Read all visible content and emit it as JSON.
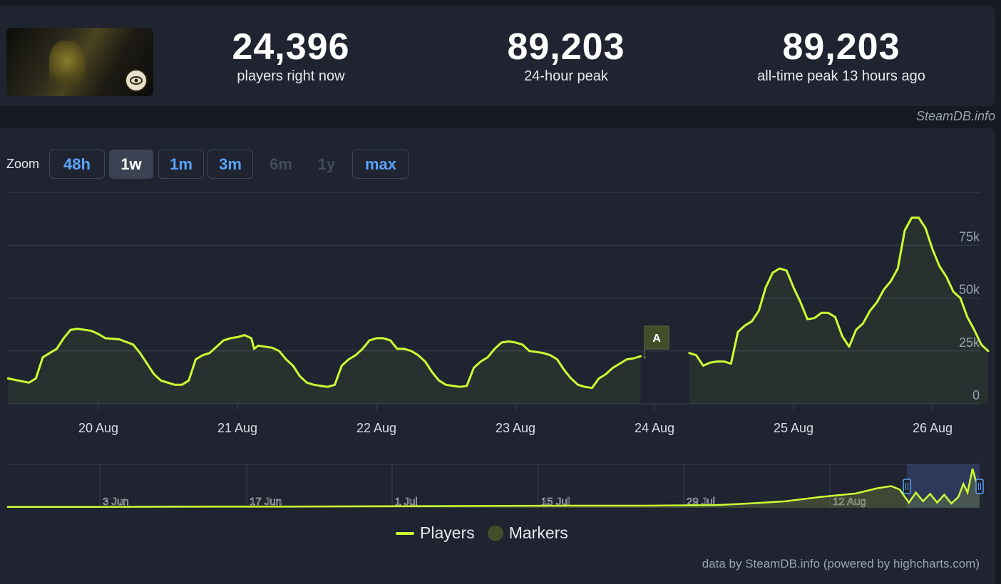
{
  "stats": {
    "current": {
      "value": "24,396",
      "label": "players right now"
    },
    "peak24": {
      "value": "89,203",
      "label": "24-hour peak"
    },
    "alltime": {
      "value": "89,203",
      "label": "all-time peak 13 hours ago"
    }
  },
  "credit_top": "SteamDB.info",
  "zoom": {
    "label": "Zoom",
    "buttons": [
      {
        "label": "48h",
        "state": "enabled"
      },
      {
        "label": "1w",
        "state": "active"
      },
      {
        "label": "1m",
        "state": "enabled"
      },
      {
        "label": "3m",
        "state": "enabled"
      },
      {
        "label": "6m",
        "state": "disabled"
      },
      {
        "label": "1y",
        "state": "disabled"
      },
      {
        "label": "max",
        "state": "enabled"
      }
    ]
  },
  "legend": {
    "players": "Players",
    "markers": "Markers"
  },
  "credit_bottom": "data by SteamDB.info (powered by highcharts.com)",
  "colors": {
    "line": "#ccff33",
    "marker": "#424d2a",
    "grid": "#3a4150",
    "navigator_window": "#3d4880"
  },
  "chart_data": {
    "type": "line",
    "ylim": [
      0,
      100000
    ],
    "yticks": [
      0,
      25000,
      50000,
      75000
    ],
    "ytick_labels": [
      "0",
      "25k",
      "50k",
      "75k"
    ],
    "xlim": [
      19.35,
      26.3
    ],
    "xticks": [
      20,
      21,
      22,
      23,
      24,
      25,
      26
    ],
    "xtick_labels": [
      "20 Aug",
      "21 Aug",
      "22 Aug",
      "23 Aug",
      "24 Aug",
      "25 Aug",
      "26 Aug"
    ],
    "series": [
      {
        "name": "Players",
        "segments": [
          [
            [
              19.35,
              12000
            ],
            [
              19.5,
              10000
            ],
            [
              19.55,
              12000
            ],
            [
              19.6,
              22000
            ],
            [
              19.65,
              24000
            ],
            [
              19.7,
              26000
            ],
            [
              19.75,
              31000
            ],
            [
              19.8,
              35000
            ],
            [
              19.85,
              35500
            ],
            [
              19.95,
              34500
            ],
            [
              20.0,
              33000
            ],
            [
              20.05,
              31000
            ],
            [
              20.15,
              30500
            ],
            [
              20.25,
              28000
            ],
            [
              20.3,
              24000
            ],
            [
              20.35,
              19000
            ],
            [
              20.4,
              14000
            ],
            [
              20.45,
              11000
            ],
            [
              20.5,
              10000
            ],
            [
              20.55,
              9000
            ],
            [
              20.6,
              9000
            ],
            [
              20.65,
              11000
            ],
            [
              20.7,
              21000
            ],
            [
              20.75,
              23000
            ],
            [
              20.8,
              24000
            ],
            [
              20.85,
              27000
            ],
            [
              20.9,
              30000
            ],
            [
              20.95,
              31000
            ],
            [
              21.0,
              31500
            ],
            [
              21.05,
              32500
            ],
            [
              21.1,
              31000
            ],
            [
              21.12,
              26000
            ],
            [
              21.15,
              27500
            ],
            [
              21.2,
              27000
            ],
            [
              21.25,
              26500
            ],
            [
              21.3,
              25000
            ],
            [
              21.35,
              21000
            ],
            [
              21.4,
              18000
            ],
            [
              21.45,
              13000
            ],
            [
              21.5,
              10000
            ],
            [
              21.55,
              9000
            ],
            [
              21.6,
              8500
            ],
            [
              21.65,
              8000
            ],
            [
              21.7,
              9000
            ],
            [
              21.75,
              18000
            ],
            [
              21.8,
              21000
            ],
            [
              21.85,
              23000
            ],
            [
              21.9,
              26000
            ],
            [
              21.95,
              30000
            ],
            [
              22.0,
              31000
            ],
            [
              22.05,
              31000
            ],
            [
              22.1,
              30000
            ],
            [
              22.15,
              26000
            ],
            [
              22.2,
              26000
            ],
            [
              22.25,
              25000
            ],
            [
              22.3,
              23000
            ],
            [
              22.35,
              20000
            ],
            [
              22.4,
              15000
            ],
            [
              22.45,
              11000
            ],
            [
              22.5,
              9000
            ],
            [
              22.55,
              8500
            ],
            [
              22.6,
              8000
            ],
            [
              22.65,
              8500
            ],
            [
              22.7,
              17000
            ],
            [
              22.75,
              20000
            ],
            [
              22.8,
              22000
            ],
            [
              22.85,
              26000
            ],
            [
              22.9,
              29000
            ],
            [
              22.95,
              29500
            ],
            [
              23.0,
              29000
            ],
            [
              23.05,
              28000
            ],
            [
              23.1,
              25000
            ],
            [
              23.15,
              24500
            ],
            [
              23.2,
              24000
            ],
            [
              23.25,
              23000
            ],
            [
              23.3,
              21000
            ],
            [
              23.35,
              16000
            ],
            [
              23.4,
              12000
            ],
            [
              23.45,
              9000
            ],
            [
              23.5,
              8000
            ],
            [
              23.55,
              7500
            ],
            [
              23.6,
              12000
            ],
            [
              23.65,
              14000
            ],
            [
              23.7,
              17000
            ],
            [
              23.75,
              19000
            ],
            [
              23.8,
              21000
            ],
            [
              23.85,
              21500
            ],
            [
              23.9,
              22500
            ]
          ],
          [
            [
              24.25,
              24000
            ],
            [
              24.3,
              23000
            ],
            [
              24.35,
              18000
            ],
            [
              24.4,
              19500
            ],
            [
              24.45,
              20000
            ],
            [
              24.5,
              20000
            ],
            [
              24.55,
              19000
            ],
            [
              24.6,
              34000
            ],
            [
              24.65,
              37000
            ],
            [
              24.7,
              39000
            ],
            [
              24.75,
              44000
            ],
            [
              24.8,
              55000
            ],
            [
              24.85,
              62000
            ],
            [
              24.9,
              64000
            ],
            [
              24.95,
              63000
            ],
            [
              25.0,
              55000
            ],
            [
              25.05,
              48000
            ],
            [
              25.1,
              40000
            ],
            [
              25.15,
              40500
            ],
            [
              25.2,
              43000
            ],
            [
              25.25,
              43000
            ],
            [
              25.3,
              41000
            ],
            [
              25.35,
              32000
            ],
            [
              25.4,
              27000
            ],
            [
              25.45,
              35000
            ],
            [
              25.5,
              38000
            ],
            [
              25.55,
              44000
            ],
            [
              25.6,
              48000
            ],
            [
              25.65,
              54000
            ],
            [
              25.7,
              58000
            ],
            [
              25.75,
              64000
            ],
            [
              25.8,
              82000
            ],
            [
              25.85,
              88000
            ],
            [
              25.9,
              88000
            ],
            [
              25.95,
              83000
            ],
            [
              26.0,
              73000
            ],
            [
              26.05,
              65000
            ],
            [
              26.1,
              60000
            ],
            [
              26.15,
              53000
            ],
            [
              26.2,
              50000
            ],
            [
              26.25,
              41000
            ],
            [
              26.3,
              35000
            ],
            [
              26.35,
              28000
            ],
            [
              26.4,
              25000
            ]
          ]
        ]
      }
    ],
    "markers": [
      {
        "x": 24.0,
        "label": "A"
      }
    ],
    "navigator": {
      "xtick_labels": [
        "3 Jun",
        "17 Jun",
        "1 Jul",
        "15 Jul",
        "29 Jul",
        "12 Aug"
      ],
      "values": [
        [
          0,
          0.02
        ],
        [
          100,
          0.02
        ],
        [
          200,
          0.025
        ],
        [
          300,
          0.03
        ],
        [
          400,
          0.03
        ],
        [
          500,
          0.035
        ],
        [
          600,
          0.04
        ],
        [
          700,
          0.045
        ],
        [
          800,
          0.05
        ],
        [
          900,
          0.05
        ],
        [
          1000,
          0.06
        ],
        [
          1050,
          0.1
        ],
        [
          1100,
          0.15
        ],
        [
          1150,
          0.25
        ],
        [
          1200,
          0.33
        ],
        [
          1230,
          0.45
        ],
        [
          1250,
          0.5
        ],
        [
          1262,
          0.42
        ],
        [
          1275,
          0.12
        ],
        [
          1285,
          0.35
        ],
        [
          1295,
          0.15
        ],
        [
          1305,
          0.32
        ],
        [
          1315,
          0.12
        ],
        [
          1325,
          0.3
        ],
        [
          1335,
          0.1
        ],
        [
          1345,
          0.25
        ],
        [
          1352,
          0.55
        ],
        [
          1358,
          0.35
        ],
        [
          1365,
          0.9
        ],
        [
          1370,
          0.6
        ],
        [
          1375,
          0.45
        ]
      ],
      "window_start": 1272,
      "window_end": 1374
    }
  }
}
